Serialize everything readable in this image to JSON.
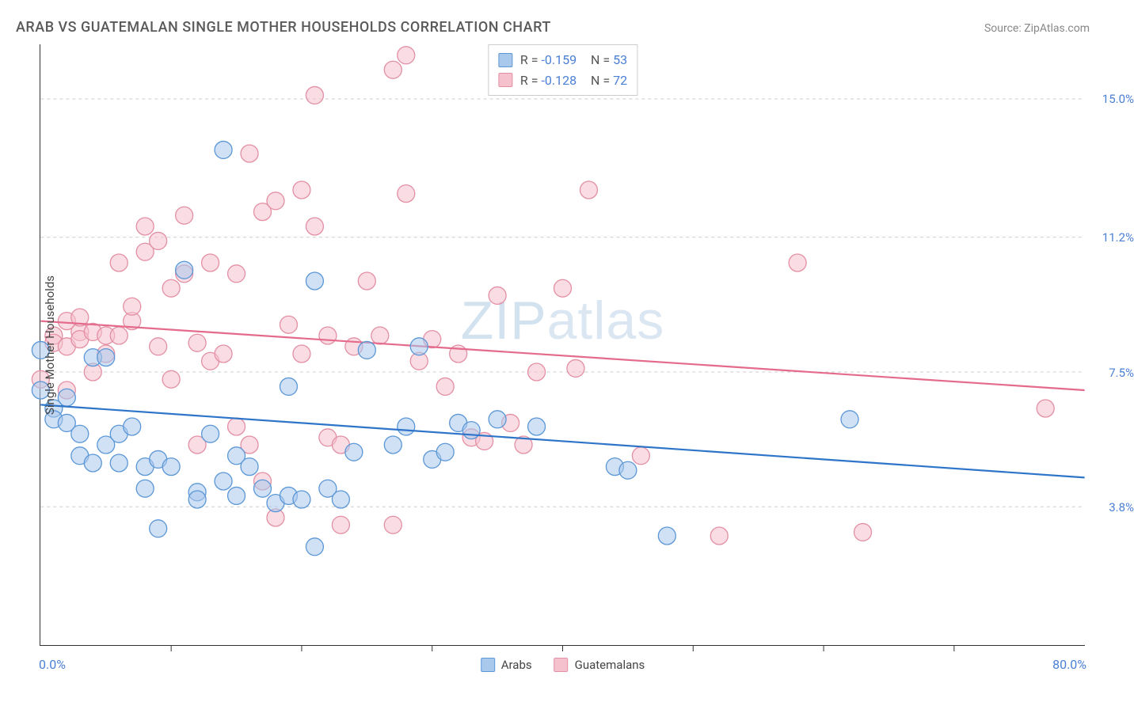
{
  "title": "ARAB VS GUATEMALAN SINGLE MOTHER HOUSEHOLDS CORRELATION CHART",
  "source": "Source: ZipAtlas.com",
  "watermark": {
    "bold": "ZIP",
    "light": "atlas"
  },
  "yaxis_label": "Single Mother Households",
  "xlim": [
    0,
    80
  ],
  "ylim": [
    0,
    16.5
  ],
  "ytick_labels": [
    "3.8%",
    "7.5%",
    "11.2%",
    "15.0%"
  ],
  "ytick_values": [
    3.8,
    7.5,
    11.2,
    15.0
  ],
  "xtick_values": [
    10,
    20,
    30,
    40,
    50,
    60,
    70
  ],
  "x_left_label": "0.0%",
  "x_right_label": "80.0%",
  "series": {
    "arabs": {
      "label": "Arabs",
      "color_fill": "#a9c9ec",
      "color_stroke": "#5b97d6",
      "line_color": "#2e75c9",
      "r_label": "R = ",
      "r_value": "-0.159",
      "n_label": "N = ",
      "n_value": "53",
      "reg_y_at_x0": 6.6,
      "reg_y_at_xmax": 4.6,
      "marker_radius": 11,
      "points": [
        [
          0,
          8.1
        ],
        [
          0,
          7.0
        ],
        [
          1,
          6.5
        ],
        [
          1,
          6.2
        ],
        [
          2,
          6.1
        ],
        [
          2,
          6.8
        ],
        [
          3,
          5.8
        ],
        [
          3,
          5.2
        ],
        [
          4,
          7.9
        ],
        [
          4,
          5.0
        ],
        [
          5,
          7.9
        ],
        [
          5,
          5.5
        ],
        [
          6,
          5.0
        ],
        [
          6,
          5.8
        ],
        [
          7,
          6.0
        ],
        [
          8,
          4.9
        ],
        [
          8,
          4.3
        ],
        [
          9,
          5.1
        ],
        [
          9,
          3.2
        ],
        [
          10,
          4.9
        ],
        [
          11,
          10.3
        ],
        [
          12,
          4.2
        ],
        [
          12,
          4.0
        ],
        [
          13,
          5.8
        ],
        [
          14,
          4.5
        ],
        [
          14,
          13.6
        ],
        [
          15,
          5.2
        ],
        [
          15,
          4.1
        ],
        [
          16,
          4.9
        ],
        [
          17,
          4.3
        ],
        [
          18,
          3.9
        ],
        [
          19,
          7.1
        ],
        [
          19,
          4.1
        ],
        [
          20,
          4.0
        ],
        [
          21,
          10.0
        ],
        [
          21,
          2.7
        ],
        [
          22,
          4.3
        ],
        [
          23,
          4.0
        ],
        [
          24,
          5.3
        ],
        [
          25,
          8.1
        ],
        [
          27,
          5.5
        ],
        [
          28,
          6.0
        ],
        [
          29,
          8.2
        ],
        [
          30,
          5.1
        ],
        [
          31,
          5.3
        ],
        [
          32,
          6.1
        ],
        [
          33,
          5.9
        ],
        [
          35,
          6.2
        ],
        [
          38,
          6.0
        ],
        [
          44,
          4.9
        ],
        [
          45,
          4.8
        ],
        [
          48,
          3.0
        ],
        [
          62,
          6.2
        ]
      ]
    },
    "guatemalans": {
      "label": "Guatemalans",
      "color_fill": "#f5c1cd",
      "color_stroke": "#e38fa4",
      "line_color": "#e46b8b",
      "r_label": "R = ",
      "r_value": "-0.128",
      "n_label": "N = ",
      "n_value": "72",
      "reg_y_at_x0": 8.9,
      "reg_y_at_xmax": 7.0,
      "marker_radius": 11,
      "points": [
        [
          0,
          7.3
        ],
        [
          1,
          8.5
        ],
        [
          1,
          8.3
        ],
        [
          2,
          8.9
        ],
        [
          2,
          8.2
        ],
        [
          2,
          7.0
        ],
        [
          3,
          8.6
        ],
        [
          3,
          8.4
        ],
        [
          3,
          9.0
        ],
        [
          4,
          8.6
        ],
        [
          4,
          7.5
        ],
        [
          5,
          8.5
        ],
        [
          5,
          8.0
        ],
        [
          6,
          8.5
        ],
        [
          6,
          10.5
        ],
        [
          7,
          8.9
        ],
        [
          7,
          9.3
        ],
        [
          8,
          11.5
        ],
        [
          8,
          10.8
        ],
        [
          9,
          8.2
        ],
        [
          9,
          11.1
        ],
        [
          10,
          9.8
        ],
        [
          10,
          7.3
        ],
        [
          11,
          11.8
        ],
        [
          11,
          10.2
        ],
        [
          12,
          5.5
        ],
        [
          12,
          8.3
        ],
        [
          13,
          10.5
        ],
        [
          13,
          7.8
        ],
        [
          14,
          8.0
        ],
        [
          15,
          6.0
        ],
        [
          15,
          10.2
        ],
        [
          16,
          13.5
        ],
        [
          16,
          5.5
        ],
        [
          17,
          4.5
        ],
        [
          17,
          11.9
        ],
        [
          18,
          12.2
        ],
        [
          18,
          3.5
        ],
        [
          19,
          8.8
        ],
        [
          20,
          8.0
        ],
        [
          20,
          12.5
        ],
        [
          21,
          15.1
        ],
        [
          21,
          11.5
        ],
        [
          22,
          8.5
        ],
        [
          22,
          5.7
        ],
        [
          23,
          5.5
        ],
        [
          23,
          3.3
        ],
        [
          24,
          8.2
        ],
        [
          25,
          10.0
        ],
        [
          26,
          8.5
        ],
        [
          27,
          15.8
        ],
        [
          27,
          3.3
        ],
        [
          28,
          16.2
        ],
        [
          28,
          12.4
        ],
        [
          29,
          7.8
        ],
        [
          30,
          8.4
        ],
        [
          31,
          7.1
        ],
        [
          32,
          8.0
        ],
        [
          33,
          5.7
        ],
        [
          34,
          5.6
        ],
        [
          35,
          9.6
        ],
        [
          36,
          6.1
        ],
        [
          37,
          5.5
        ],
        [
          38,
          7.5
        ],
        [
          40,
          9.8
        ],
        [
          41,
          7.6
        ],
        [
          42,
          12.5
        ],
        [
          46,
          5.2
        ],
        [
          52,
          3.0
        ],
        [
          58,
          10.5
        ],
        [
          63,
          3.1
        ],
        [
          77,
          6.5
        ]
      ]
    }
  },
  "background_color": "#ffffff",
  "grid_color": "#cccccc",
  "axis_color": "#333333",
  "fill_opacity": 0.55
}
